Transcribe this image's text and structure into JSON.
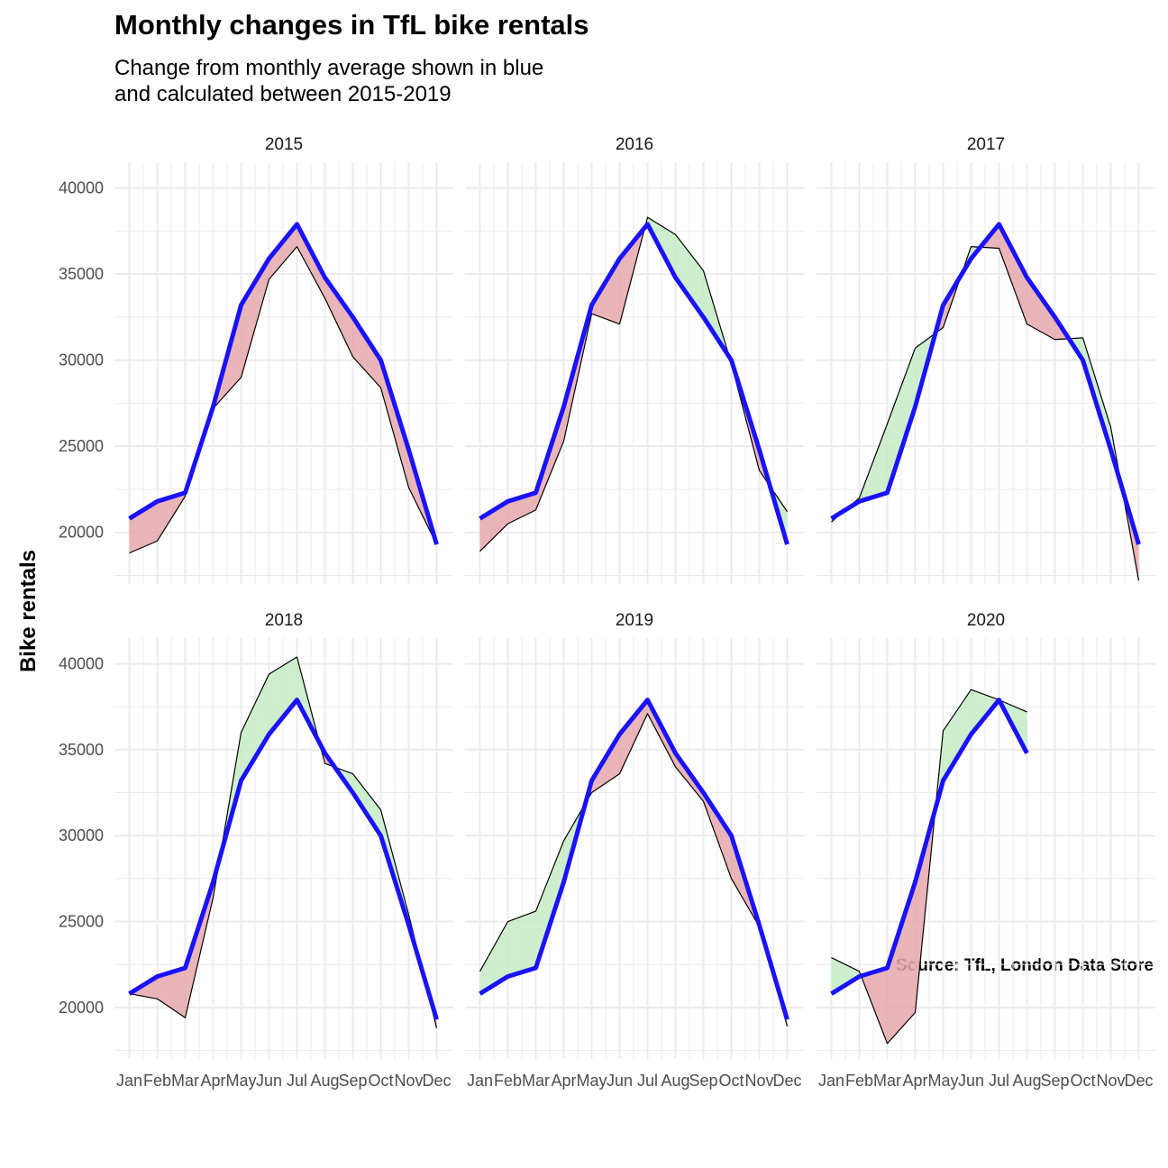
{
  "title": "Monthly changes in TfL bike rentals",
  "subtitle": [
    "Change from monthly average shown in blue",
    "and calculated between 2015-2019"
  ],
  "y_axis_title": "Bike rentals",
  "caption": "Source: TfL, London Data Store",
  "colors": {
    "average_line": "#1a12ff",
    "above_fill": "#c6ecc6",
    "below_fill": "#e6a8ab",
    "grid": "#ebebeb",
    "actual_line": "#000000"
  },
  "chart_data": {
    "type": "line",
    "layout": "facet_wrap 2 rows x 3 columns",
    "xlabel": "",
    "ylabel": "Bike rentals",
    "ylim": [
      17000,
      41500
    ],
    "y_ticks": [
      20000,
      25000,
      30000,
      35000,
      40000
    ],
    "categories": [
      "Jan",
      "Feb",
      "Mar",
      "Apr",
      "May",
      "Jun",
      "Jul",
      "Aug",
      "Sep",
      "Oct",
      "Nov",
      "Dec"
    ],
    "average_series": {
      "values": [
        20800,
        21800,
        22300,
        27300,
        33200,
        35900,
        37900,
        34800,
        32500,
        30000,
        24800,
        19300
      ]
    },
    "panels": [
      {
        "year": "2015",
        "values": [
          18800,
          19500,
          22100,
          27200,
          29000,
          34700,
          36600,
          33600,
          30200,
          28400,
          22600,
          19300
        ]
      },
      {
        "year": "2016",
        "values": [
          18900,
          20500,
          21300,
          25300,
          32700,
          32100,
          38300,
          37300,
          35200,
          29800,
          23600,
          21200
        ]
      },
      {
        "year": "2017",
        "values": [
          20600,
          22000,
          26300,
          30700,
          31900,
          36600,
          36500,
          32100,
          31200,
          31300,
          26100,
          17200
        ]
      },
      {
        "year": "2018",
        "values": [
          20800,
          20500,
          19400,
          26400,
          36000,
          39400,
          40400,
          34200,
          33600,
          31500,
          25400,
          18800
        ]
      },
      {
        "year": "2019",
        "values": [
          22100,
          25000,
          25600,
          29700,
          32500,
          33600,
          37100,
          34000,
          32000,
          27500,
          24700,
          18900
        ]
      },
      {
        "year": "2020",
        "values": [
          22900,
          22100,
          17900,
          19700,
          36100,
          38500,
          37900,
          37200,
          null,
          null,
          null,
          null
        ]
      }
    ]
  }
}
